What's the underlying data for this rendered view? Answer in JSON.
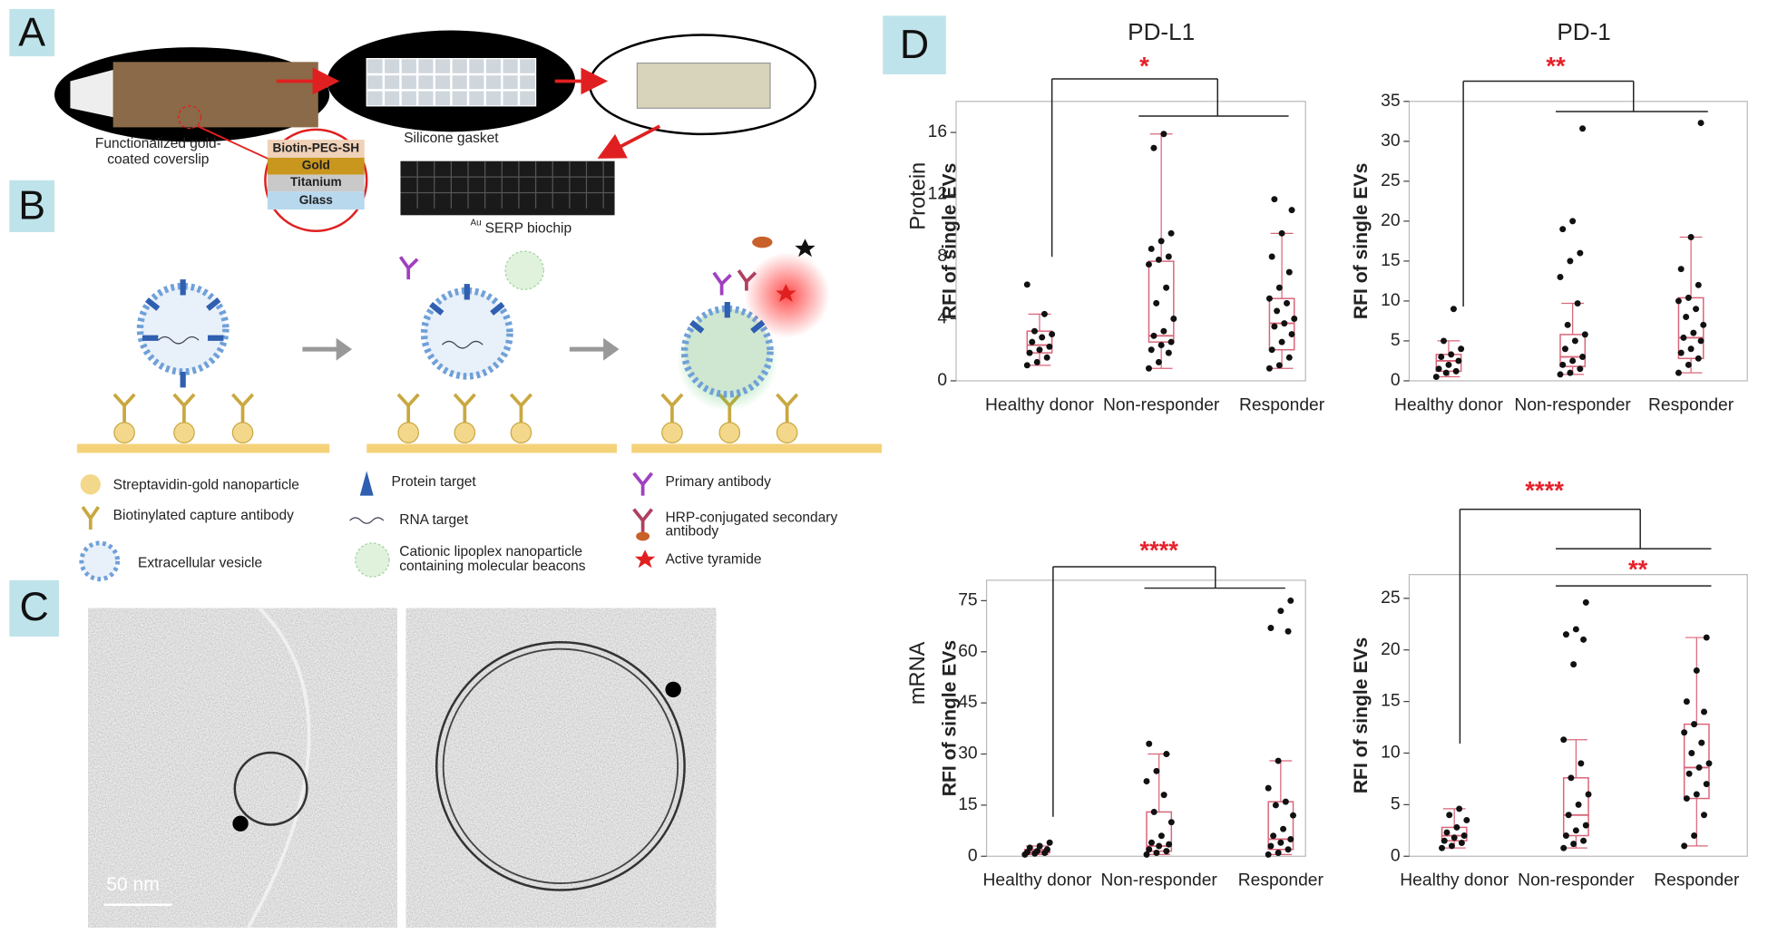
{
  "panel_labels": [
    "A",
    "B",
    "C",
    "D"
  ],
  "panel_a": {
    "coverslip": [
      "Functionalized gold-",
      "coated coverslip"
    ],
    "gasket": "Silicone gasket",
    "layers": [
      "Biotin-PEG-SH",
      "Gold",
      "Titanium",
      "Glass"
    ],
    "biochip_prefix": "Au",
    "biochip": "SERP biochip"
  },
  "panel_b": {
    "legend": [
      [
        "Streptavidin-gold nanoparticle"
      ],
      [
        "Biotinylated capture antibody"
      ],
      [
        "Extracellular vesicle"
      ],
      [
        "Protein target"
      ],
      [
        "RNA target"
      ],
      [
        "Cationic lipoplex nanoparticle",
        "containing molecular beacons"
      ],
      [
        "Primary antibody"
      ],
      [
        "HRP-conjugated secondary",
        "antibody"
      ],
      [
        "Active tyramide"
      ]
    ]
  },
  "panel_c": {
    "scale_bar": "50 nm"
  },
  "chart_data": [
    {
      "type": "box",
      "title": "PD-L1",
      "row_label": "Protein",
      "ylabel": "RFI of single EVs",
      "categories": [
        "Healthy donor",
        "Non-responder",
        "Responder"
      ],
      "ylim": [
        0,
        18
      ],
      "yticks": [
        0,
        4,
        8,
        12,
        16
      ],
      "color": "#d9667a",
      "boxes": [
        {
          "min": 1,
          "q1": 1.8,
          "median": 2.3,
          "q3": 3.2,
          "max": 4.3
        },
        {
          "min": 0.8,
          "q1": 2.5,
          "median": 2.9,
          "q3": 7.7,
          "max": 15.9
        },
        {
          "min": 0.8,
          "q1": 2,
          "median": 3.7,
          "q3": 5.3,
          "max": 9.5
        }
      ],
      "points": [
        [
          1,
          1.2,
          1.5,
          1.8,
          2,
          2.2,
          2.5,
          2.8,
          3,
          3.2,
          4.3,
          6.2
        ],
        [
          0.8,
          1.2,
          1.8,
          2,
          2.3,
          2.5,
          2.9,
          3.2,
          4,
          5,
          6,
          7.5,
          7.8,
          8,
          8.5,
          9,
          9.5,
          15,
          15.9
        ],
        [
          0.8,
          1,
          1.5,
          2,
          2.5,
          3,
          3.5,
          3.7,
          4,
          4.5,
          5,
          5.3,
          6,
          7,
          8,
          9.5,
          11,
          11.7
        ]
      ],
      "annotations": [
        {
          "text": "*",
          "color": "#e8202a"
        }
      ]
    },
    {
      "type": "box",
      "title": "PD-1",
      "ylabel": "RFI of single EVs",
      "categories": [
        "Healthy donor",
        "Non-responder",
        "Responder"
      ],
      "ylim": [
        0,
        35
      ],
      "yticks": [
        0,
        5,
        10,
        15,
        20,
        25,
        30,
        35
      ],
      "color": "#d9667a",
      "boxes": [
        {
          "min": 0.5,
          "q1": 1.2,
          "median": 2.5,
          "q3": 3.3,
          "max": 5
        },
        {
          "min": 0.8,
          "q1": 1.8,
          "median": 3,
          "q3": 5.8,
          "max": 9.7
        },
        {
          "min": 1,
          "q1": 2.8,
          "median": 5.4,
          "q3": 10.4,
          "max": 18
        }
      ],
      "points": [
        [
          0.5,
          1,
          1.2,
          1.5,
          2,
          2.5,
          3,
          3.3,
          4,
          5,
          9
        ],
        [
          0.8,
          1,
          1.5,
          2,
          2.5,
          3,
          4,
          5,
          5.8,
          7,
          9.7,
          13,
          15,
          16,
          19,
          20,
          31.6
        ],
        [
          1,
          2,
          2.8,
          3.5,
          4,
          5,
          5.4,
          6,
          7,
          8,
          9,
          10,
          10.4,
          12,
          14,
          18,
          32.3
        ]
      ],
      "annotations": [
        {
          "text": "**",
          "color": "#e8202a"
        }
      ]
    },
    {
      "type": "box",
      "row_label": "mRNA",
      "ylabel": "RFI of single EVs",
      "categories": [
        "Healthy donor",
        "Non-responder",
        "Responder"
      ],
      "ylim": [
        0,
        81
      ],
      "yticks": [
        0,
        15,
        30,
        45,
        60,
        75
      ],
      "color": "#d9667a",
      "boxes": [
        {
          "min": 0.5,
          "q1": 1,
          "median": 1.5,
          "q3": 2,
          "max": 3
        },
        {
          "min": 0.5,
          "q1": 1.5,
          "median": 3,
          "q3": 13,
          "max": 30
        },
        {
          "min": 0.5,
          "q1": 2,
          "median": 5,
          "q3": 16,
          "max": 28
        }
      ],
      "points": [
        [
          0.5,
          0.8,
          1,
          1.2,
          1.5,
          2,
          2.5,
          3,
          4
        ],
        [
          0.5,
          1,
          1.5,
          2,
          3,
          3.5,
          4,
          6,
          10,
          13,
          18,
          22,
          25,
          30,
          33
        ],
        [
          0.5,
          1,
          2,
          3,
          4,
          5,
          6,
          8,
          12,
          15,
          16,
          20,
          28,
          66,
          67,
          72,
          75
        ]
      ],
      "annotations": [
        {
          "text": "****",
          "color": "#e8202a"
        }
      ]
    },
    {
      "type": "box",
      "ylabel": "RFI of single EVs",
      "categories": [
        "Healthy donor",
        "Non-responder",
        "Responder"
      ],
      "ylim": [
        0,
        27.3
      ],
      "yticks": [
        0,
        5,
        10,
        15,
        20,
        25
      ],
      "color": "#d9667a",
      "boxes": [
        {
          "min": 0.8,
          "q1": 1.5,
          "median": 2,
          "q3": 2.8,
          "max": 4.6
        },
        {
          "min": 0.8,
          "q1": 2,
          "median": 4,
          "q3": 7.6,
          "max": 11.3
        },
        {
          "min": 1,
          "q1": 5.6,
          "median": 8.6,
          "q3": 12.8,
          "max": 21.2
        }
      ],
      "points": [
        [
          0.8,
          1,
          1.3,
          1.5,
          1.8,
          2,
          2.3,
          2.8,
          3.5,
          4,
          4.6
        ],
        [
          0.8,
          1.2,
          1.5,
          2,
          2.5,
          3,
          4,
          5,
          6,
          7.6,
          9,
          11.3,
          18.6,
          21,
          21.5,
          22,
          24.6
        ],
        [
          1,
          2,
          4,
          5.6,
          6,
          7,
          8,
          8.6,
          9,
          10,
          11,
          12,
          12.8,
          14,
          15,
          18,
          21.2
        ]
      ],
      "annotations": [
        {
          "text": "****",
          "color": "#e8202a"
        },
        {
          "text": "**",
          "color": "#e8202a"
        }
      ]
    }
  ]
}
